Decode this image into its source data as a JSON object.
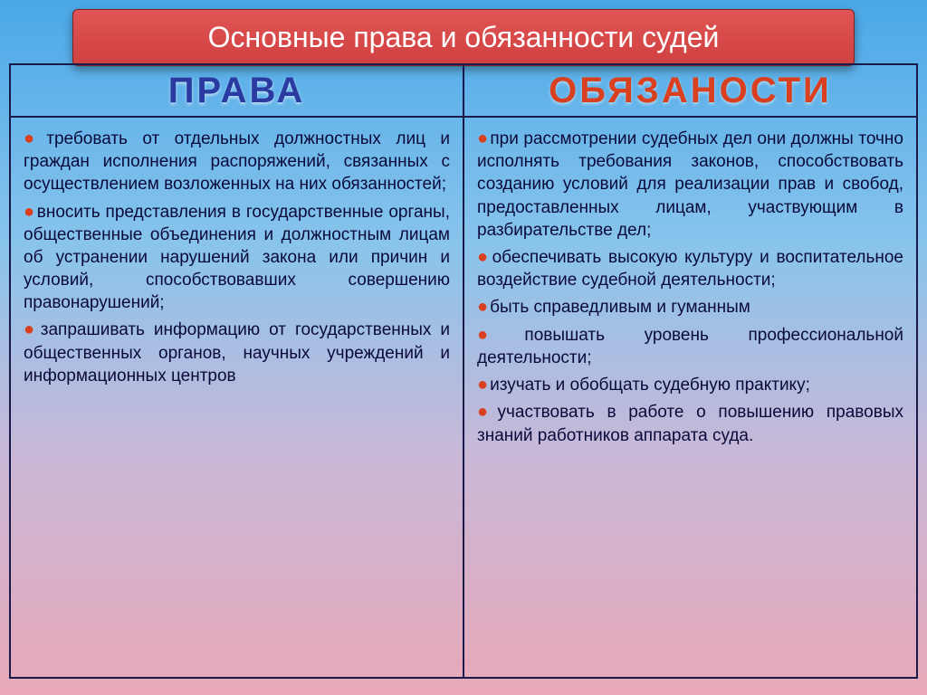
{
  "title": "Основные права и обязанности судей",
  "headers": {
    "left": "ПРАВА",
    "right": "ОБЯЗАНОСТИ"
  },
  "left_items": [
    "требовать от отдельных должностных лиц и граждан исполнения распоряжений, связанных с осуществлением возложенных на них обязанностей;",
    "вносить представления в государственные органы, общественные объединения и должностным лицам об устранении нарушений закона или причин и условий, способствовавших совершению правонарушений;",
    "запрашивать информацию от государственных и общественных органов, научных учреждений и информационных центров"
  ],
  "right_items": [
    "при рассмотрении судебных дел они должны точно исполнять требования законов, способствовать созданию условий для реализации прав и свобод, предоставленных лицам, участвующим в разбирательстве дел;",
    "обеспечивать высокую культуру и воспитательное воздействие судебной деятельности;",
    "быть справедливым и гуманным",
    "повышать уровень профессиональной деятельности;",
    "изучать и обобщать судебную практику;",
    "участвовать в работе о повышению правовых знаний работников аппарата суда."
  ],
  "colors": {
    "title_bg": "#d04040",
    "left_header_color": "#2a3aa0",
    "right_header_color": "#d84020",
    "bullet_color": "#d84020",
    "text_color": "#0a0a3a",
    "border_color": "#1a1a4a"
  }
}
